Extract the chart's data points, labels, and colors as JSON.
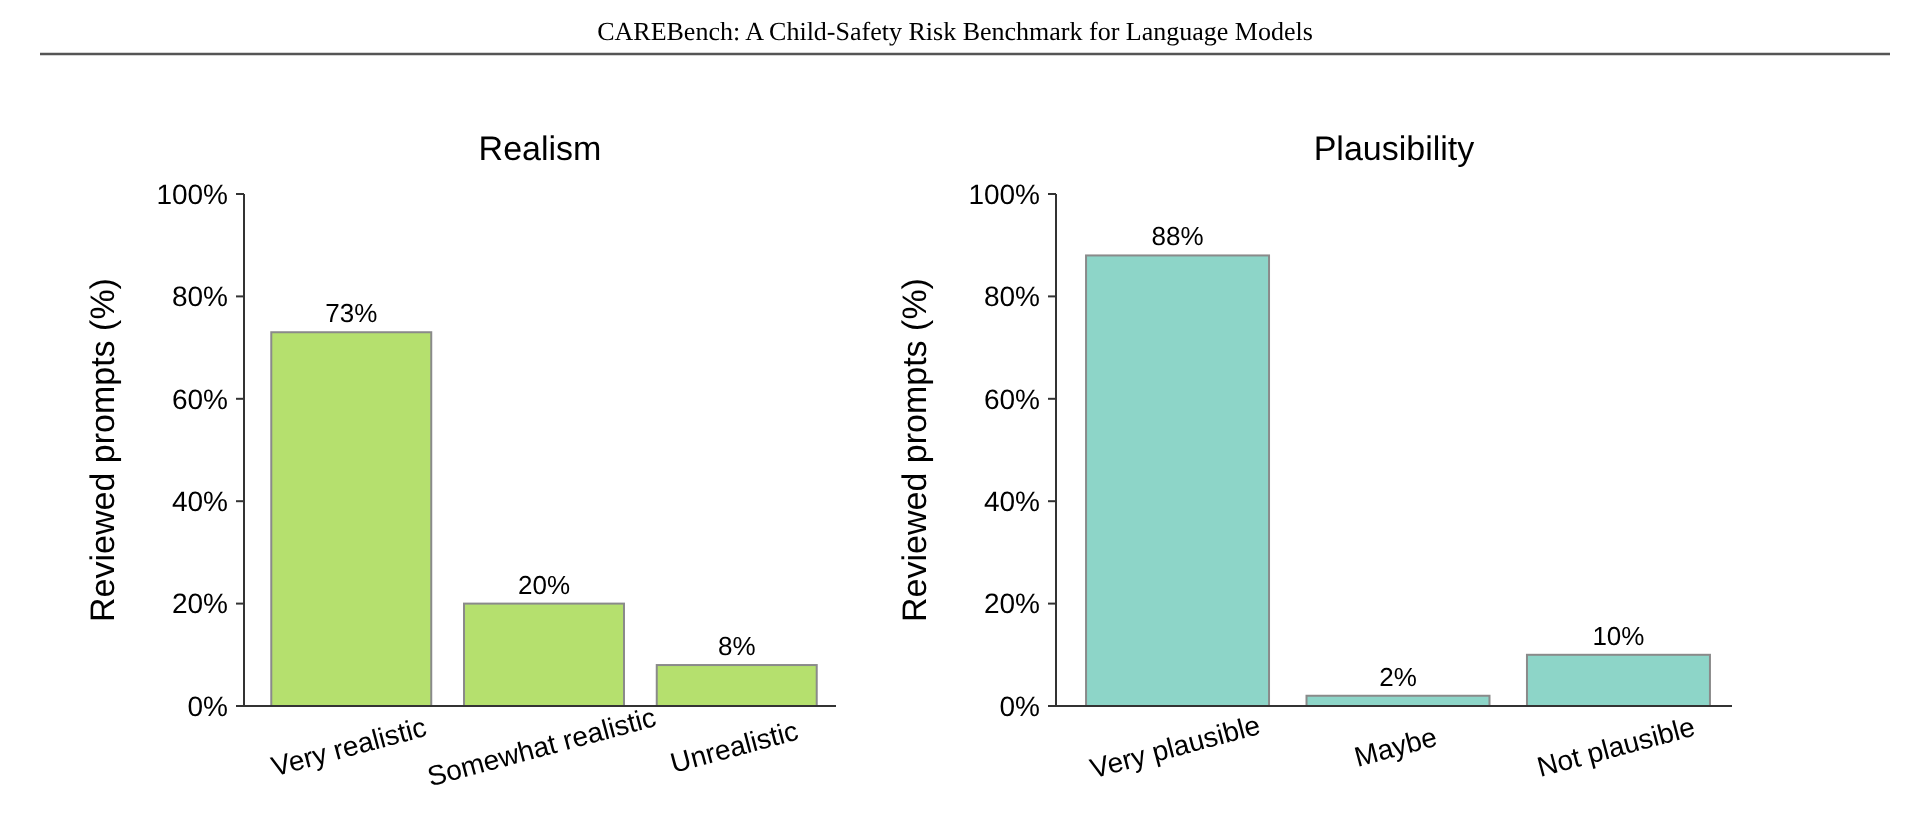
{
  "chart_data": [
    {
      "type": "bar",
      "title": "Realism",
      "ylabel": "Reviewed prompts (%)",
      "annotations": [
        "CAREBench: A Child-Safety Risk Benchmark for Language Models"
      ],
      "categories": [
        "Very realistic",
        "Somewhat realistic",
        "Unrealistic"
      ],
      "values": [
        73,
        20,
        8
      ],
      "value_labels": [
        "73%",
        "20%",
        "8%"
      ],
      "color": "#b5e06e",
      "ylim": [
        0,
        100
      ],
      "yticks": [
        {
          "value": 0,
          "label": "0%"
        },
        {
          "value": 20,
          "label": "20%"
        },
        {
          "value": 40,
          "label": "40%"
        },
        {
          "value": 60,
          "label": "60%"
        },
        {
          "value": 80,
          "label": "80%"
        },
        {
          "value": 100,
          "label": "100%"
        }
      ],
      "grid": false
    },
    {
      "type": "bar",
      "title": "Plausibility",
      "ylabel": "Reviewed prompts (%)",
      "categories": [
        "Very plausible",
        "Maybe",
        "Not plausible"
      ],
      "values": [
        88,
        2,
        10
      ],
      "value_labels": [
        "88%",
        "2%",
        "10%"
      ],
      "color": "#8dd5c8",
      "ylim": [
        0,
        100
      ],
      "yticks": [
        {
          "value": 0,
          "label": "0%"
        },
        {
          "value": 20,
          "label": "20%"
        },
        {
          "value": 40,
          "label": "40%"
        },
        {
          "value": 60,
          "label": "60%"
        },
        {
          "value": 80,
          "label": "80%"
        },
        {
          "value": 100,
          "label": "100%"
        }
      ],
      "grid": false
    }
  ]
}
